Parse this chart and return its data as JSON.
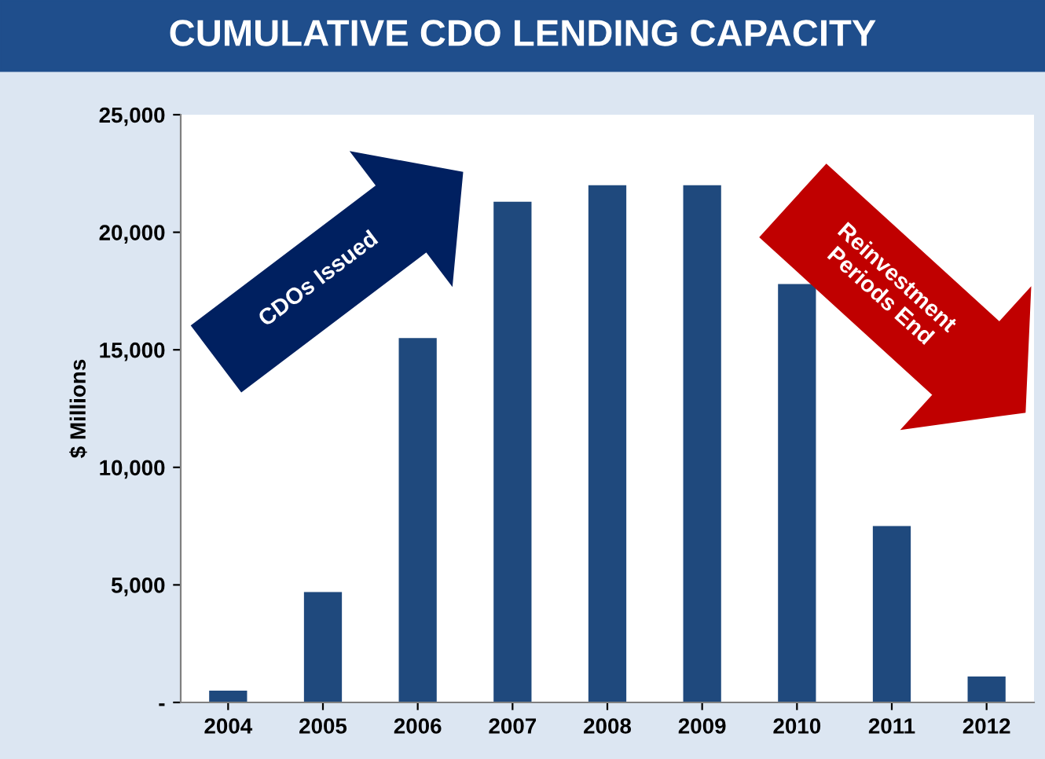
{
  "chart_data": {
    "type": "bar",
    "title": "CUMULATIVE CDO LENDING CAPACITY",
    "ylabel": "$ Millions",
    "categories": [
      "2004",
      "2005",
      "2006",
      "2007",
      "2008",
      "2009",
      "2010",
      "2011",
      "2012"
    ],
    "values": [
      500,
      4700,
      15500,
      21300,
      22000,
      22000,
      17800,
      7500,
      1100
    ],
    "color": "#1f497d",
    "ylim": [
      0,
      25000
    ],
    "yticks": [
      {
        "value": 0,
        "label": "-"
      },
      {
        "value": 5000,
        "label": "5,000"
      },
      {
        "value": 10000,
        "label": "10,000"
      },
      {
        "value": 15000,
        "label": "15,000"
      },
      {
        "value": 20000,
        "label": "20,000"
      },
      {
        "value": 25000,
        "label": "25,000"
      }
    ],
    "annotations": [
      "CDOs Issued",
      "Reinvestment Periods End"
    ],
    "grid": false,
    "legend": false
  }
}
